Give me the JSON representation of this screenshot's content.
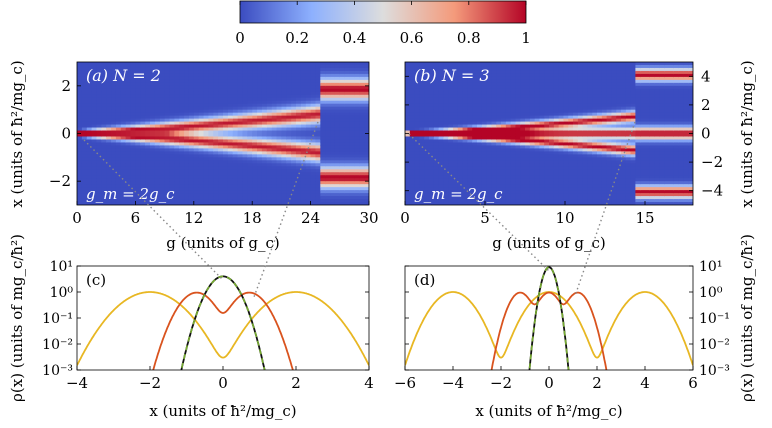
{
  "colorbar": {
    "ticks": [
      "0",
      "0.2",
      "0.4",
      "0.6",
      "0.8",
      "1"
    ],
    "colors": [
      "#3b4cc0",
      "#8db0fe",
      "#dddddd",
      "#f49a7b",
      "#b40426"
    ]
  },
  "chart_data": [
    {
      "id": "a",
      "type": "heatmap",
      "label": "(a) N = 2",
      "annotation": "g_m = 2g_c",
      "xlabel": "g (units of g_c)",
      "ylabel": "x (units of ħ²/mg_c)",
      "xlim": [
        0,
        30
      ],
      "ylim": [
        -3,
        3
      ],
      "xticks": [
        "0",
        "6",
        "12",
        "18",
        "24",
        "30"
      ],
      "yticks": [
        "−2",
        "0",
        "2"
      ],
      "main_region_x": [
        0,
        25
      ],
      "inset_peaks_x": [
        -1.85,
        1.85
      ],
      "peak_separation_at_max_g": 1.6
    },
    {
      "id": "b",
      "type": "heatmap",
      "label": "(b) N = 3",
      "annotation": "g_m = 2g_c",
      "xlabel": "g (units of g_c)",
      "ylabel": "x (units of ħ²/mg_c)",
      "xlim": [
        0,
        18
      ],
      "ylim": [
        -5,
        5
      ],
      "xticks": [
        "0",
        "5",
        "10",
        "15"
      ],
      "yticks": [
        "−4",
        "−2",
        "0",
        "2",
        "4"
      ],
      "main_region_x": [
        0,
        14.5
      ],
      "inset_peaks_x": [
        -4.1,
        0,
        4.1
      ],
      "peak_separation_at_max_g": 2.4
    },
    {
      "id": "c",
      "type": "line",
      "label": "(c)",
      "xlabel": "x (units of ħ²/mg_c)",
      "ylabel": "ρ(x) (units of mg_c/ħ²)",
      "xlim": [
        -4,
        4
      ],
      "ylim_log10": [
        -3,
        1
      ],
      "xticks": [
        "−4",
        "−2",
        "0",
        "2",
        "4"
      ],
      "yticks": [
        "10⁻³",
        "10⁻²",
        "10⁻¹",
        "10⁰",
        "10¹"
      ],
      "series": [
        {
          "color": "#e8b723",
          "kind": "sep",
          "centers": [
            -2,
            2
          ],
          "peak": 1.0,
          "width": 0.62
        },
        {
          "color": "#d9531e",
          "kind": "sep",
          "centers": [
            -0.72,
            0.72
          ],
          "peak": 0.95,
          "width": 0.36
        },
        {
          "color": "#111111",
          "kind": "gauss",
          "centers": [
            0
          ],
          "peak": 4.0,
          "width": 0.22
        },
        {
          "color": "#77ac30",
          "kind": "gauss_dashed",
          "centers": [
            0
          ],
          "peak": 4.0,
          "width": 0.22
        }
      ]
    },
    {
      "id": "d",
      "type": "line",
      "label": "(d)",
      "xlabel": "x (units of ħ²/mg_c)",
      "ylabel": "ρ(x) (units of mg_c/ħ²)",
      "xlim": [
        -6,
        6
      ],
      "ylim_log10": [
        -3,
        1
      ],
      "xticks": [
        "−6",
        "−4",
        "−2",
        "0",
        "2",
        "4",
        "6"
      ],
      "yticks": [
        "10⁻³",
        "10⁻²",
        "10⁻¹",
        "10⁰",
        "10¹"
      ],
      "series": [
        {
          "color": "#e8b723",
          "kind": "sep",
          "centers": [
            -4,
            0,
            4
          ],
          "peak": 1.0,
          "width": 0.62
        },
        {
          "color": "#d9531e",
          "kind": "sep",
          "centers": [
            -1.2,
            0,
            1.2
          ],
          "peak": 0.95,
          "width": 0.36
        },
        {
          "color": "#111111",
          "kind": "gauss",
          "centers": [
            0
          ],
          "peak": 9.0,
          "width": 0.15
        },
        {
          "color": "#77ac30",
          "kind": "gauss_dashed",
          "centers": [
            0
          ],
          "peak": 9.0,
          "width": 0.15
        }
      ]
    }
  ]
}
